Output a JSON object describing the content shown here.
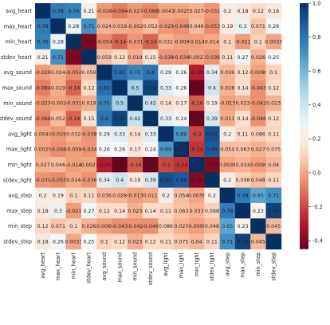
{
  "chart_data": {
    "type": "heatmap",
    "title": "",
    "labels": [
      "avg_heart",
      "max_heart",
      "min_heart",
      "stdev_heart",
      "avg_sound",
      "max_sound",
      "min_sound",
      "stdev_sound",
      "avg_light",
      "max_light",
      "min_light",
      "stdev_light",
      "avg_step",
      "max_step",
      "min_step",
      "stdev_step"
    ],
    "matrix": [
      [
        1,
        0.78,
        0.76,
        0.21,
        -0.026,
        -0.084,
        -0.027,
        -0.066,
        0.0047,
        0.0025,
        0.027,
        -0.031,
        0.2,
        0.18,
        0.12,
        0.18
      ],
      [
        0.78,
        1,
        0.28,
        0.71,
        0.024,
        0.019,
        -0.002,
        0.052,
        -0.029,
        -0.046,
        0.046,
        -0.053,
        0.19,
        0.3,
        0.071,
        0.26
      ],
      [
        0.76,
        0.28,
        1,
        -0.4,
        -0.054,
        -0.14,
        -0.031,
        -0.14,
        0.032,
        -0.009,
        -0.014,
        0.014,
        0.1,
        -0.021,
        0.1,
        0.0033
      ],
      [
        0.21,
        0.71,
        -0.4,
        1,
        0.059,
        0.12,
        0.019,
        0.15,
        -0.038,
        -0.034,
        -0.0027,
        -0.036,
        0.11,
        0.27,
        0.026,
        0.25
      ],
      [
        -0.026,
        0.024,
        -0.054,
        0.059,
        1,
        0.82,
        0.75,
        0.8,
        0.29,
        0.26,
        -0.29,
        0.34,
        0.036,
        0.12,
        -0.0089,
        0.1
      ],
      [
        -0.084,
        0.019,
        -0.14,
        0.12,
        0.82,
        1,
        0.5,
        0.94,
        0.33,
        0.26,
        -0.44,
        0.4,
        0.028,
        0.14,
        -0.043,
        0.12
      ],
      [
        -0.027,
        -0.002,
        -0.031,
        0.019,
        0.75,
        0.5,
        1,
        0.42,
        0.14,
        0.17,
        -0.16,
        0.19,
        -0.013,
        0.023,
        -0.042,
        0.023
      ],
      [
        -0.066,
        0.052,
        -0.14,
        0.15,
        0.8,
        0.94,
        0.42,
        1,
        0.33,
        0.24,
        -0.44,
        0.39,
        0.011,
        0.14,
        -0.046,
        0.12
      ],
      [
        0.0047,
        -0.029,
        0.032,
        -0.038,
        0.29,
        0.33,
        0.14,
        0.33,
        1,
        0.69,
        -0.2,
        0.91,
        0.2,
        0.11,
        0.086,
        0.11
      ],
      [
        0.0025,
        -0.046,
        -0.009,
        -0.034,
        0.26,
        0.26,
        0.17,
        0.24,
        0.69,
        1,
        -0.24,
        0.88,
        0.054,
        0.063,
        0.027,
        0.075
      ],
      [
        0.027,
        0.046,
        -0.014,
        -0.0027,
        -0.29,
        -0.44,
        -0.16,
        -0.44,
        -0.2,
        -0.24,
        1,
        -0.39,
        0.0038,
        0.033,
        -0.0099,
        0.04
      ],
      [
        -0.031,
        -0.053,
        0.014,
        -0.036,
        0.34,
        0.4,
        0.19,
        0.39,
        0.91,
        0.88,
        -0.39,
        1,
        0.2,
        0.098,
        0.048,
        0.11
      ],
      [
        0.2,
        0.19,
        0.1,
        0.11,
        0.036,
        0.028,
        -0.013,
        0.011,
        0.2,
        0.054,
        0.0038,
        0.2,
        1,
        0.78,
        0.65,
        0.71
      ],
      [
        0.18,
        0.3,
        -0.021,
        0.27,
        0.12,
        0.14,
        0.023,
        0.14,
        0.11,
        0.063,
        0.033,
        0.098,
        0.78,
        1,
        0.23,
        0.95
      ],
      [
        0.12,
        0.071,
        0.1,
        0.026,
        -0.0089,
        -0.043,
        -0.042,
        -0.046,
        0.086,
        0.027,
        -0.0099,
        0.048,
        0.65,
        0.23,
        1,
        0.045
      ],
      [
        0.18,
        0.26,
        0.0033,
        0.25,
        0.1,
        0.12,
        0.023,
        0.12,
        0.11,
        0.075,
        0.04,
        0.11,
        0.71,
        0.95,
        0.045,
        1
      ]
    ],
    "cell_text": [
      [
        "1",
        "0.78",
        "0.76",
        "0.21",
        "-0.026",
        "-0.084",
        "-0.027",
        "-0.066",
        "0.0047",
        "0.0025",
        "0.027",
        "-0.031",
        "0.2",
        "0.18",
        "0.12",
        "0.18"
      ],
      [
        "0.78",
        "1",
        "0.28",
        "0.71",
        "0.024",
        "0.019",
        "-0.002",
        "0.052",
        "-0.029",
        "-0.046",
        "0.046",
        "-0.053",
        "0.19",
        "0.3",
        "0.071",
        "0.26"
      ],
      [
        "0.76",
        "0.28",
        "1",
        "-0.4",
        "-0.054",
        "-0.14",
        "-0.031",
        "-0.14",
        "0.032",
        "-0.009",
        "-0.014",
        "0.014",
        "0.1",
        "-0.021",
        "0.1",
        "0.0033"
      ],
      [
        "0.21",
        "0.71",
        "-0.4",
        "1",
        "0.059",
        "0.12",
        "0.019",
        "0.15",
        "-0.038",
        "-0.034",
        "-0.0027",
        "-0.036",
        "0.11",
        "0.27",
        "0.026",
        "0.25"
      ],
      [
        "-0.026",
        "0.024",
        "-0.054",
        "0.059",
        "1",
        "0.82",
        "0.75",
        "0.8",
        "0.29",
        "0.26",
        "-0.29",
        "0.34",
        "0.036",
        "0.12",
        "-0.0089",
        "0.1"
      ],
      [
        "-0.084",
        "0.019",
        "-0.14",
        "0.12",
        "0.82",
        "1",
        "0.5",
        "0.94",
        "0.33",
        "0.26",
        "-0.44",
        "0.4",
        "0.028",
        "0.14",
        "-0.043",
        "0.12"
      ],
      [
        "-0.027",
        "-0.002",
        "-0.031",
        "0.019",
        "0.75",
        "0.5",
        "1",
        "0.42",
        "0.14",
        "0.17",
        "-0.16",
        "0.19",
        "-0.013",
        "0.023",
        "-0.042",
        "0.023"
      ],
      [
        "-0.066",
        "0.052",
        "-0.14",
        "0.15",
        "0.8",
        "0.94",
        "0.42",
        "1",
        "0.33",
        "0.24",
        "-0.44",
        "0.39",
        "0.011",
        "0.14",
        "-0.046",
        "0.12"
      ],
      [
        "0.0047",
        "-0.029",
        "0.032",
        "-0.038",
        "0.29",
        "0.33",
        "0.14",
        "0.33",
        "1",
        "0.69",
        "-0.2",
        "0.91",
        "0.2",
        "0.11",
        "0.086",
        "0.11"
      ],
      [
        "0.0025",
        "-0.046",
        "-0.009",
        "-0.034",
        "0.26",
        "0.26",
        "0.17",
        "0.24",
        "0.69",
        "1",
        "-0.24",
        "0.88",
        "0.054",
        "0.063",
        "0.027",
        "0.075"
      ],
      [
        "0.027",
        "0.046",
        "-0.014",
        "-0.0027",
        "-0.29",
        "-0.44",
        "-0.16",
        "-0.44",
        "-0.2",
        "-0.24",
        "1",
        "-0.39",
        "0.0038",
        "0.033",
        "-0.0099",
        "0.04"
      ],
      [
        "-0.031",
        "-0.053",
        "0.014",
        "-0.036",
        "0.34",
        "0.4",
        "0.19",
        "0.39",
        "0.91",
        "0.88",
        "-0.39",
        "1",
        "0.2",
        "0.098",
        "0.048",
        "0.11"
      ],
      [
        "0.2",
        "0.19",
        "0.1",
        "0.11",
        "0.036",
        "0.028",
        "-0.013",
        "0.011",
        "0.2",
        "0.054",
        "0.0038",
        "0.2",
        "1",
        "0.78",
        "0.65",
        "0.71"
      ],
      [
        "0.18",
        "0.3",
        "-0.021",
        "0.27",
        "0.12",
        "0.14",
        "0.023",
        "0.14",
        "0.11",
        "0.063",
        "0.033",
        "0.098",
        "0.78",
        "1",
        "0.23",
        "0.95"
      ],
      [
        "0.12",
        "0.071",
        "0.1",
        "0.026",
        "-0.0089",
        "-0.043",
        "-0.042",
        "-0.046",
        "0.086",
        "0.027",
        "-0.0099",
        "0.048",
        "0.65",
        "0.23",
        "1",
        "0.045"
      ],
      [
        "0.18",
        "0.26",
        "0.0033",
        "0.25",
        "0.1",
        "0.12",
        "0.023",
        "0.12",
        "0.11",
        "0.075",
        "0.04",
        "0.11",
        "0.71",
        "0.95",
        "0.045",
        "1"
      ]
    ],
    "vmin": -0.45,
    "vmax": 1.0,
    "colormap": "RdBu",
    "colorbar": {
      "ticks": [
        1.0,
        0.8,
        0.6,
        0.4,
        0.2,
        0.0,
        -0.2,
        -0.4
      ],
      "tick_labels": [
        "1.0",
        "0.8",
        "0.6",
        "0.4",
        "0.2",
        "0.0",
        "-0.2",
        "-0.4"
      ]
    },
    "colors": {
      "low": "#67001f",
      "mid": "#f7f7f7",
      "high": "#053061",
      "text_on_light": "#111111",
      "text_on_dark": "#ffffff"
    }
  }
}
